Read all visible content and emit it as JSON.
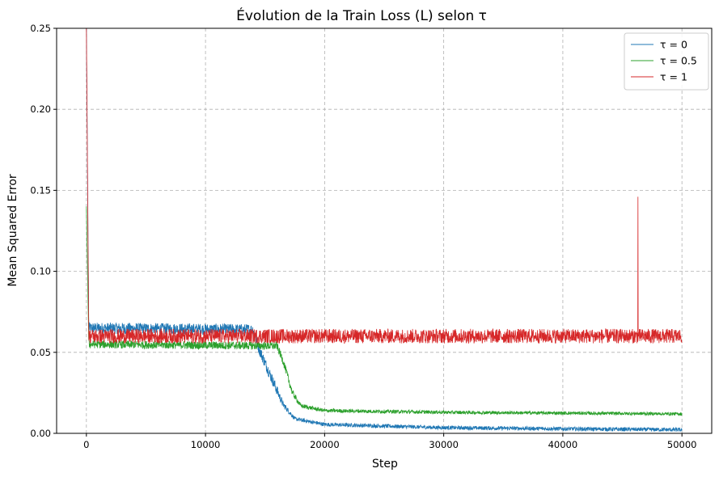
{
  "chart_data": {
    "type": "line",
    "title": "Évolution de la Train Loss (L) selon τ",
    "xlabel": "Step",
    "ylabel": "Mean Squared Error",
    "xlim": [
      -2500,
      52500
    ],
    "ylim": [
      0,
      0.25
    ],
    "x_ticks": [
      0,
      10000,
      20000,
      30000,
      40000,
      50000
    ],
    "x_tick_labels": [
      "0",
      "10000",
      "20000",
      "30000",
      "40000",
      "50000"
    ],
    "y_ticks": [
      0.0,
      0.05,
      0.1,
      0.15,
      0.2,
      0.25
    ],
    "y_tick_labels": [
      "0.00",
      "0.05",
      "0.10",
      "0.15",
      "0.20",
      "0.25"
    ],
    "grid": true,
    "legend_position": "top-right",
    "series": [
      {
        "name": "τ = 0",
        "color": "#1f77b4",
        "noise": 0.0035,
        "points": [
          [
            0,
            0.25
          ],
          [
            200,
            0.065
          ],
          [
            14000,
            0.064
          ],
          [
            14500,
            0.052
          ],
          [
            15500,
            0.035
          ],
          [
            16500,
            0.018
          ],
          [
            17500,
            0.009
          ],
          [
            20000,
            0.0055
          ],
          [
            30000,
            0.0035
          ],
          [
            40000,
            0.0028
          ],
          [
            50000,
            0.0022
          ]
        ]
      },
      {
        "name": "τ = 0.5",
        "color": "#2ca02c",
        "noise": 0.0025,
        "points": [
          [
            0,
            0.14
          ],
          [
            200,
            0.055
          ],
          [
            16000,
            0.054
          ],
          [
            16500,
            0.045
          ],
          [
            17300,
            0.025
          ],
          [
            18000,
            0.017
          ],
          [
            20000,
            0.014
          ],
          [
            30000,
            0.013
          ],
          [
            40000,
            0.0125
          ],
          [
            50000,
            0.012
          ]
        ]
      },
      {
        "name": "τ = 1",
        "color": "#d62728",
        "noise": 0.0045,
        "spike": {
          "x": 46300,
          "y": 0.146
        },
        "points": [
          [
            0,
            0.25
          ],
          [
            200,
            0.06
          ],
          [
            50000,
            0.06
          ]
        ]
      }
    ]
  }
}
